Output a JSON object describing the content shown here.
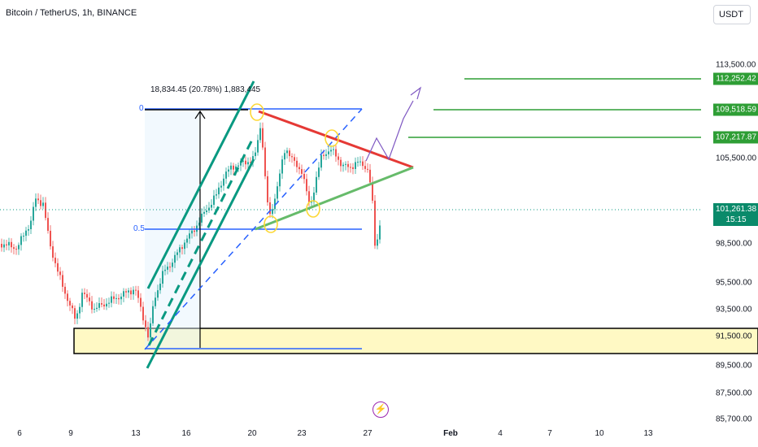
{
  "header": {
    "title": "Bitcoin / TetherUS, 1h, BINANCE",
    "currency_button": "USDT"
  },
  "measure_tool": {
    "label": "18,834.45 (20.78%) 1,883,445"
  },
  "fib": {
    "level_0": "0",
    "level_05": "0.5"
  },
  "price_axis": {
    "labels": [
      "113,500.00",
      "105,500.00",
      "98,500.00",
      "95,500.00",
      "93,500.00",
      "91,500.00",
      "89,500.00",
      "87,500.00",
      "85,700.00"
    ],
    "targets": [
      "112,252.42",
      "109,518.59",
      "107,217.87"
    ],
    "current_price": "101,261.38",
    "countdown": "15:15"
  },
  "time_axis": {
    "labels": [
      "6",
      "9",
      "13",
      "16",
      "20",
      "23",
      "27",
      "Feb",
      "4",
      "7",
      "10",
      "13"
    ]
  },
  "colors": {
    "up": "#26a69a",
    "down": "#ef5350",
    "fib_line": "#2962ff",
    "resistance": "#e53935",
    "support": "#4caf50",
    "channel": "#089981",
    "target": "#2e9e35",
    "demand_zone": "#fff9c4",
    "projection": "#7e57c2"
  },
  "icons": {
    "event": "flash-icon"
  }
}
